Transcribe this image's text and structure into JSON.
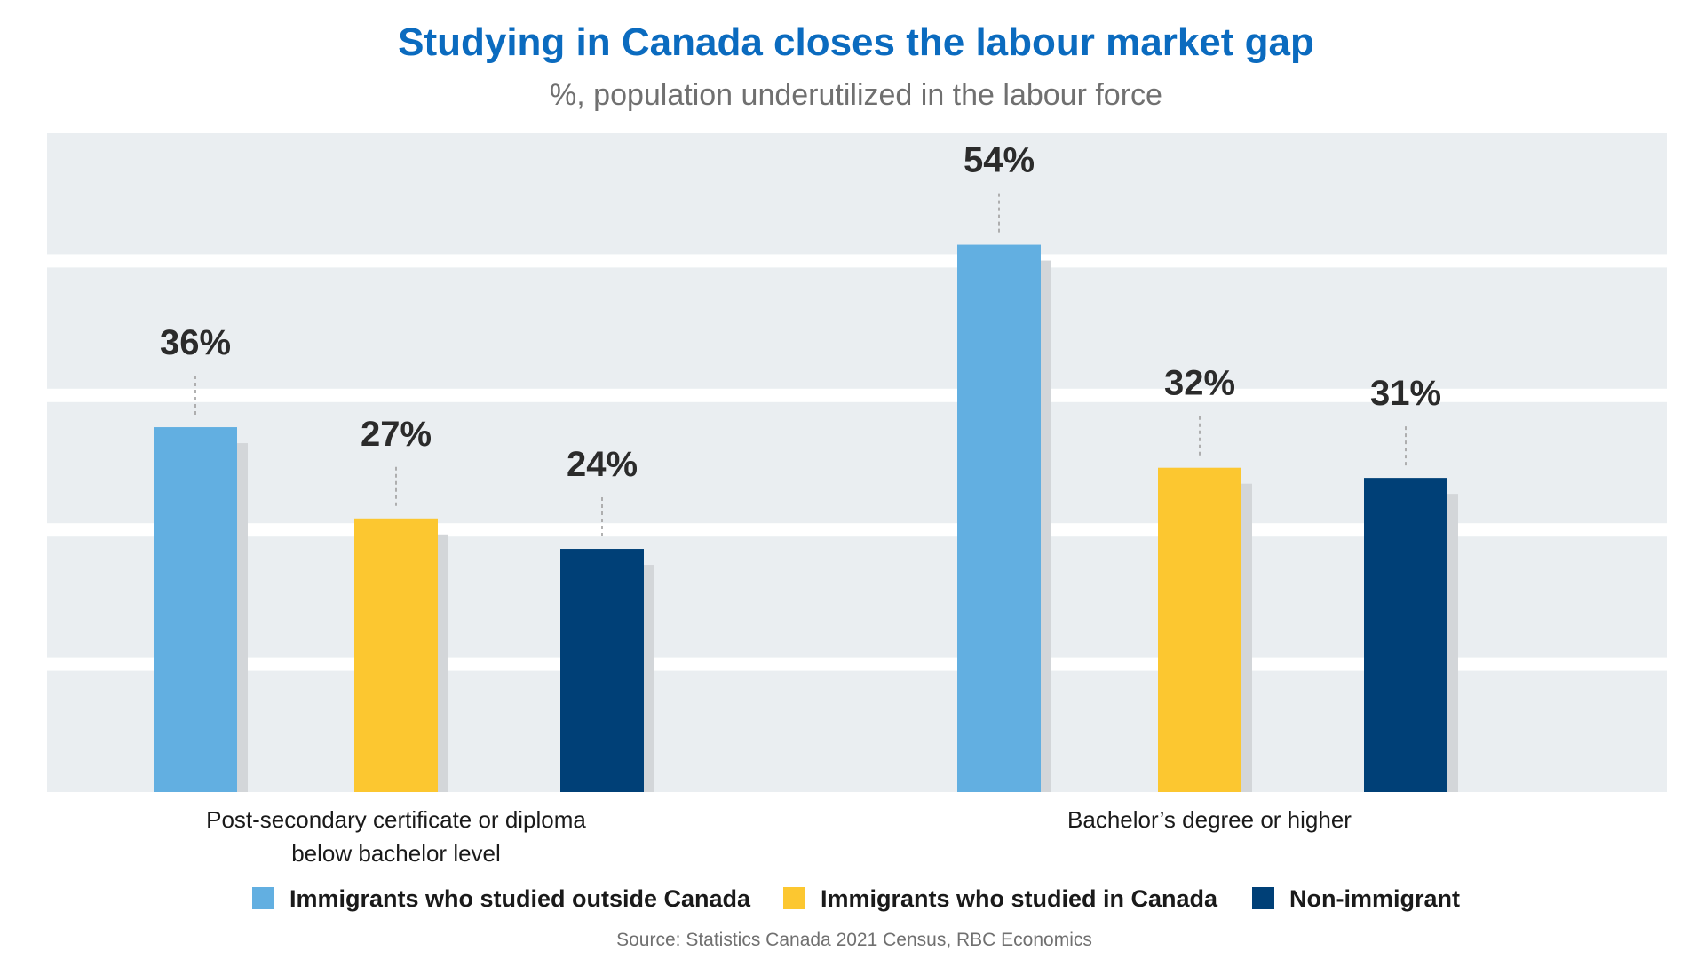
{
  "chart_data": {
    "type": "bar",
    "title": "Studying in Canada closes the labour market gap",
    "subtitle": "%, population underutilized in the labour force",
    "categories": [
      "Post-secondary certificate or diploma below bachelor level",
      "Bachelor’s degree or higher"
    ],
    "category_lines": [
      [
        "Post-secondary certificate or diploma",
        "below bachelor level"
      ],
      [
        "Bachelor’s degree or higher"
      ]
    ],
    "series": [
      {
        "name": "Immigrants who studied outside Canada",
        "color": "#62afe1",
        "values": [
          36,
          54
        ],
        "labels": [
          "36%",
          "54%"
        ]
      },
      {
        "name": "Immigrants who studied in Canada",
        "color": "#fcc730",
        "values": [
          27,
          32
        ],
        "labels": [
          "27%",
          "32%"
        ]
      },
      {
        "name": "Non-immigrant",
        "color": "#004077",
        "values": [
          24,
          31
        ],
        "labels": [
          "24%",
          "31%"
        ]
      }
    ],
    "xlabel": "",
    "ylabel": "",
    "ylim": [
      0,
      65
    ],
    "grid": "horizontal bands",
    "legend": "bottom",
    "source": "Source: Statistics Canada 2021 Census, RBC Economics"
  },
  "colors": {
    "title": "#0b6bbf",
    "band": "#eaeef1",
    "shadow": "#d3d6d9"
  }
}
